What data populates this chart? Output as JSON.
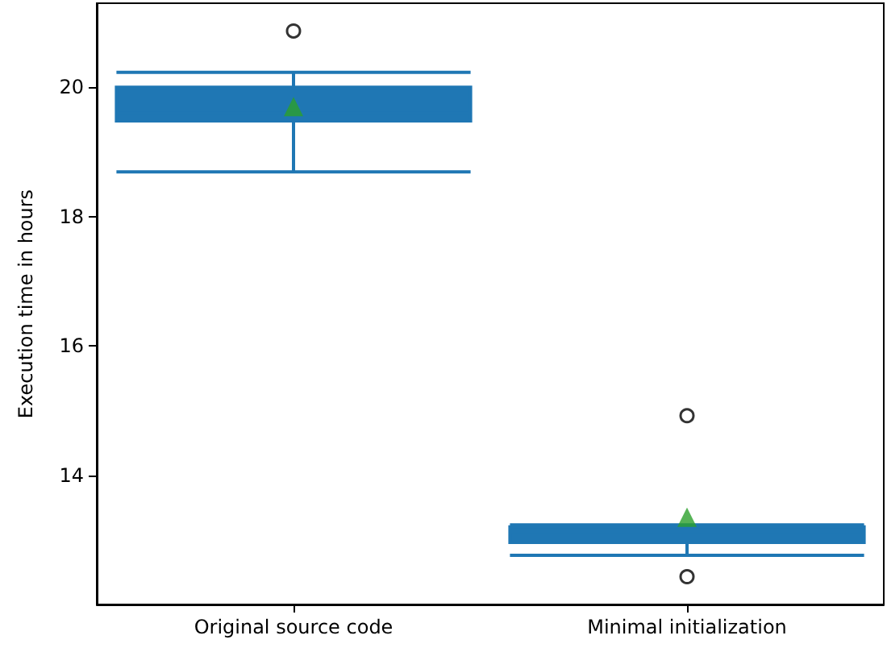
{
  "chart_data": {
    "type": "box",
    "ylabel": "Execution time in hours",
    "categories": [
      "Original source code",
      "Minimal initialization"
    ],
    "boxes": [
      {
        "low": 18.69,
        "q1": 19.48,
        "median": 19.6,
        "q3": 20.0,
        "high": 20.23,
        "mean": 19.7,
        "outliers": [
          20.87
        ]
      },
      {
        "low": 12.76,
        "q1": 12.96,
        "median": 13.13,
        "q3": 13.2,
        "high": 13.23,
        "mean": 13.35,
        "outliers": [
          12.43,
          14.92
        ]
      }
    ],
    "color": "#1f77b4",
    "ylim": [
      12.0,
      21.3
    ],
    "yticks": [
      14,
      16,
      18,
      20
    ],
    "grid": false
  }
}
